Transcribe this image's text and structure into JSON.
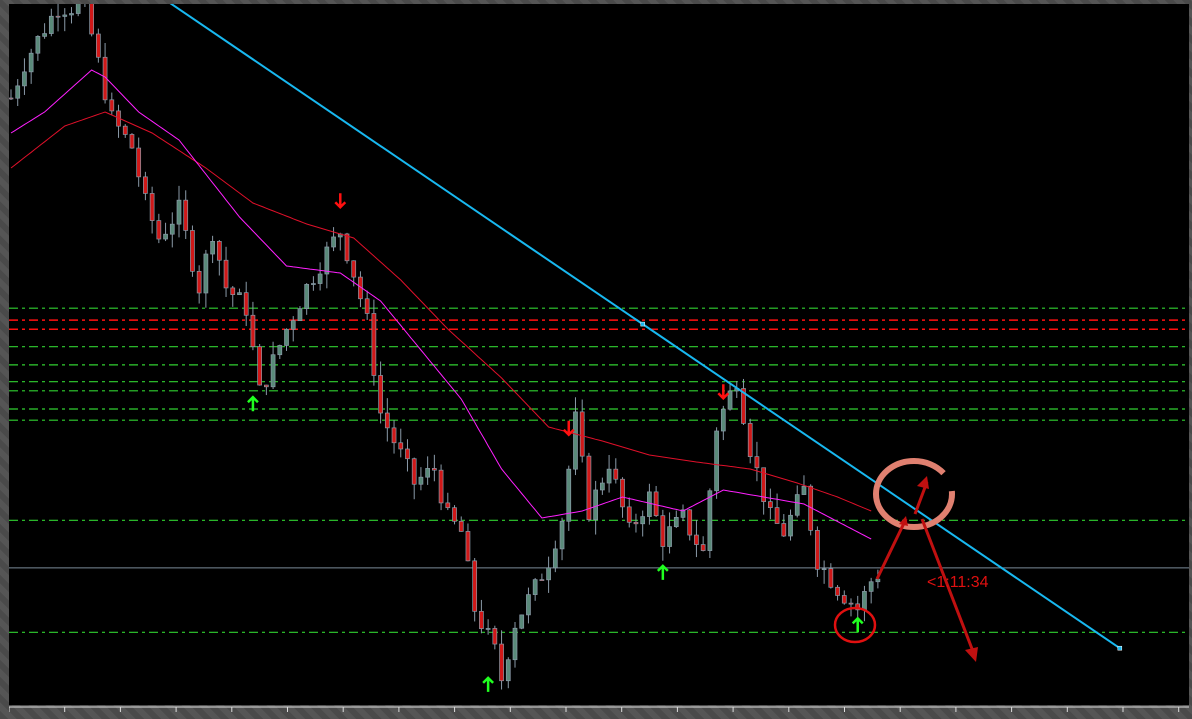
{
  "chart_data": {
    "type": "candlestick",
    "title": "",
    "xlabel": "",
    "ylabel": "",
    "grid": false,
    "colors": {
      "background": "#000000",
      "candle_up": "#5a8a7a",
      "candle_down": "#d01818",
      "wick": "#8a9aa8",
      "ma_fast": "#ff20ff",
      "ma_slow": "#e0102a",
      "trendline": "#18b8f0",
      "level_green": "#30d030",
      "level_red": "#ff1010",
      "bid_line": "#7a8a98",
      "annotation": "#c01010"
    },
    "price_path": [
      [
        0,
        86
      ],
      [
        2,
        91
      ],
      [
        5,
        96
      ],
      [
        7,
        99
      ],
      [
        11,
        99
      ],
      [
        13,
        91
      ],
      [
        15,
        83
      ],
      [
        18,
        79
      ],
      [
        20,
        71
      ],
      [
        22,
        66
      ],
      [
        25,
        70
      ],
      [
        28,
        59
      ],
      [
        30,
        67
      ],
      [
        32,
        59
      ],
      [
        35,
        56
      ],
      [
        37,
        44
      ],
      [
        38,
        46
      ],
      [
        41,
        53
      ],
      [
        44,
        59
      ],
      [
        47,
        64
      ],
      [
        49,
        67
      ],
      [
        51,
        61
      ],
      [
        53,
        54
      ],
      [
        55,
        41
      ],
      [
        57,
        37
      ],
      [
        60,
        31
      ],
      [
        63,
        33
      ],
      [
        65,
        26
      ],
      [
        67,
        24
      ],
      [
        69,
        13
      ],
      [
        72,
        7
      ],
      [
        73,
        3
      ],
      [
        75,
        11
      ],
      [
        78,
        16
      ],
      [
        80,
        20
      ],
      [
        82,
        26
      ],
      [
        84,
        40
      ],
      [
        86,
        27
      ],
      [
        89,
        34
      ],
      [
        92,
        24
      ],
      [
        95,
        29
      ],
      [
        97,
        23
      ],
      [
        100,
        26
      ],
      [
        103,
        21
      ],
      [
        105,
        39
      ],
      [
        108,
        46
      ],
      [
        110,
        36
      ],
      [
        113,
        26
      ],
      [
        115,
        24
      ],
      [
        118,
        30
      ],
      [
        120,
        20
      ],
      [
        123,
        16
      ],
      [
        126,
        13
      ],
      [
        128,
        17
      ],
      [
        129,
        18
      ]
    ],
    "ma_fast": [
      [
        0,
        81
      ],
      [
        5,
        84
      ],
      [
        12,
        90
      ],
      [
        14,
        89
      ],
      [
        19,
        84
      ],
      [
        25,
        80
      ],
      [
        34,
        69
      ],
      [
        41,
        62
      ],
      [
        49,
        61
      ],
      [
        55,
        57
      ],
      [
        61,
        50
      ],
      [
        67,
        43
      ],
      [
        73,
        33
      ],
      [
        79,
        26
      ],
      [
        85,
        27
      ],
      [
        91,
        29
      ],
      [
        100,
        27
      ],
      [
        106,
        30
      ],
      [
        112,
        29
      ],
      [
        118,
        28
      ],
      [
        124,
        25
      ],
      [
        128,
        23
      ]
    ],
    "ma_slow": [
      [
        0,
        76
      ],
      [
        8,
        82
      ],
      [
        14,
        84
      ],
      [
        21,
        81
      ],
      [
        29,
        76
      ],
      [
        36,
        71
      ],
      [
        44,
        68
      ],
      [
        51,
        66
      ],
      [
        58,
        60
      ],
      [
        65,
        53
      ],
      [
        73,
        46
      ],
      [
        80,
        39
      ],
      [
        88,
        37
      ],
      [
        95,
        35
      ],
      [
        102,
        34
      ],
      [
        110,
        33
      ],
      [
        117,
        31
      ],
      [
        123,
        29
      ],
      [
        128,
        27
      ]
    ],
    "levels_green": [
      55.4,
      49.9,
      47.3,
      44.9,
      43.6,
      41.0,
      39.4,
      25.1,
      9.1
    ],
    "levels_red": [
      53.7,
      52.4
    ],
    "bid_level": 18.3,
    "trendline": [
      [
        23,
        100
      ],
      [
        165,
        7.4
      ]
    ],
    "sell_arrows": [
      [
        49,
        70.4
      ],
      [
        83,
        37.9
      ],
      [
        106,
        43.1
      ]
    ],
    "buy_arrows": [
      [
        36,
        42.4
      ],
      [
        71,
        2.3
      ],
      [
        97,
        18.3
      ],
      [
        126,
        10.8
      ]
    ]
  },
  "countdown": "<1:11:34"
}
